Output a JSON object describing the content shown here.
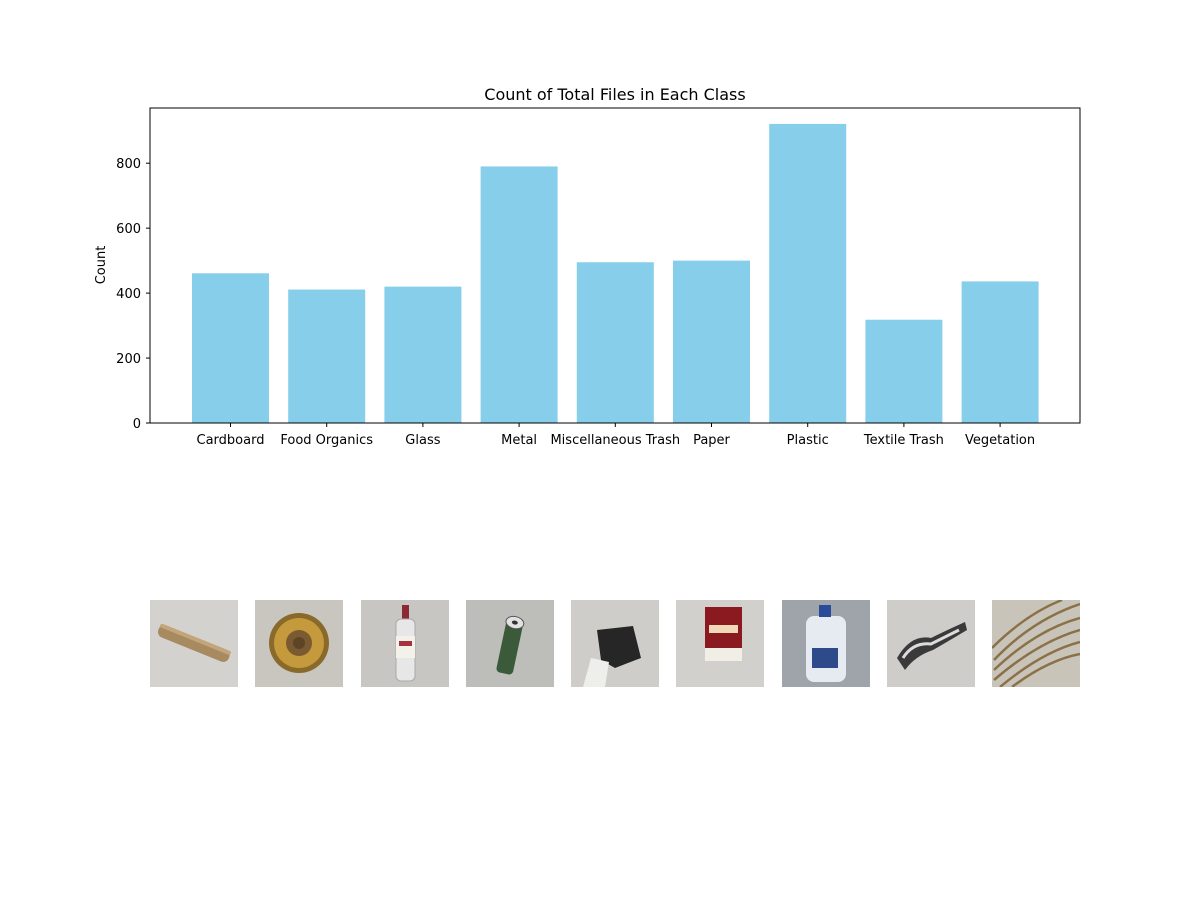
{
  "chart_data": {
    "type": "bar",
    "title": "Count of Total Files in Each Class",
    "xlabel": "",
    "ylabel": "Count",
    "categories": [
      "Cardboard",
      "Food Organics",
      "Glass",
      "Metal",
      "Miscellaneous Trash",
      "Paper",
      "Plastic",
      "Textile Trash",
      "Vegetation"
    ],
    "values": [
      461,
      411,
      420,
      790,
      495,
      500,
      921,
      318,
      436
    ],
    "ylim": [
      0,
      970
    ],
    "yticks": [
      0,
      200,
      400,
      600,
      800
    ],
    "bar_color": "#87CEEB",
    "grid": false,
    "legend": "none"
  },
  "thumbnails": [
    {
      "label": "Cardboard",
      "icon": "cardboard-tube-photo"
    },
    {
      "label": "Food Organics",
      "icon": "pineapple-slice-photo"
    },
    {
      "label": "Glass",
      "icon": "glass-bottle-photo"
    },
    {
      "label": "Metal",
      "icon": "metal-can-photo"
    },
    {
      "label": "Miscellaneous Trash",
      "icon": "misc-trash-photo"
    },
    {
      "label": "Paper",
      "icon": "paper-box-photo"
    },
    {
      "label": "Plastic",
      "icon": "plastic-jug-photo"
    },
    {
      "label": "Textile Trash",
      "icon": "textile-scrap-photo"
    },
    {
      "label": "Vegetation",
      "icon": "palm-leaves-photo"
    }
  ]
}
